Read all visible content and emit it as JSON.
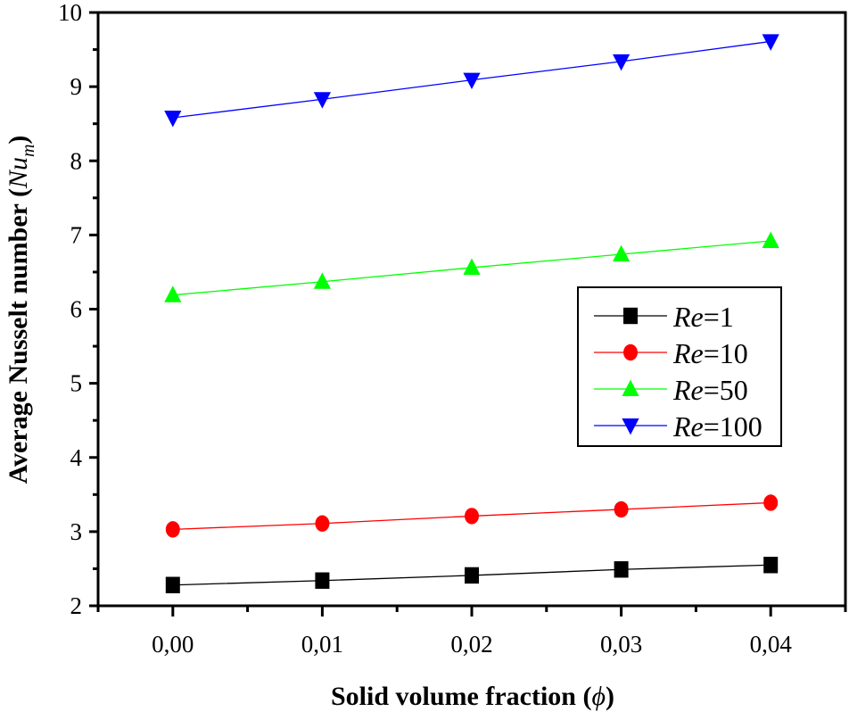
{
  "chart_data": {
    "type": "line",
    "xlabel": "Solid volume fraction  (",
    "xlabel_symbol": "ϕ",
    "xlabel_close": ")",
    "ylabel": "Average Nusselt number  (",
    "ylabel_symbol": "Nu",
    "ylabel_sub": "m",
    "ylabel_close": ")",
    "xlim": [
      -0.005,
      0.045
    ],
    "ylim": [
      2,
      10
    ],
    "x": [
      0.0,
      0.01,
      0.02,
      0.03,
      0.04
    ],
    "xticks": [
      "0,00",
      "0,01",
      "0,02",
      "0,03",
      "0,04"
    ],
    "yticks": [
      "2",
      "3",
      "4",
      "5",
      "6",
      "7",
      "8",
      "9",
      "10"
    ],
    "grid": false,
    "legend_placement": "center-right",
    "series": [
      {
        "name_italic": "Re",
        "name_rest": "=1",
        "color": "#000000",
        "marker": "square",
        "values": [
          2.28,
          2.34,
          2.41,
          2.49,
          2.55
        ]
      },
      {
        "name_italic": "Re",
        "name_rest": "=10",
        "color": "#ff0000",
        "marker": "circle",
        "values": [
          3.03,
          3.11,
          3.21,
          3.3,
          3.39
        ]
      },
      {
        "name_italic": "Re",
        "name_rest": "=50",
        "color": "#00ff00",
        "marker": "triangle-up",
        "values": [
          6.19,
          6.37,
          6.56,
          6.74,
          6.92
        ]
      },
      {
        "name_italic": "Re",
        "name_rest": "=100",
        "color": "#0000ff",
        "marker": "triangle-down",
        "values": [
          8.58,
          8.83,
          9.09,
          9.34,
          9.61
        ]
      }
    ]
  }
}
